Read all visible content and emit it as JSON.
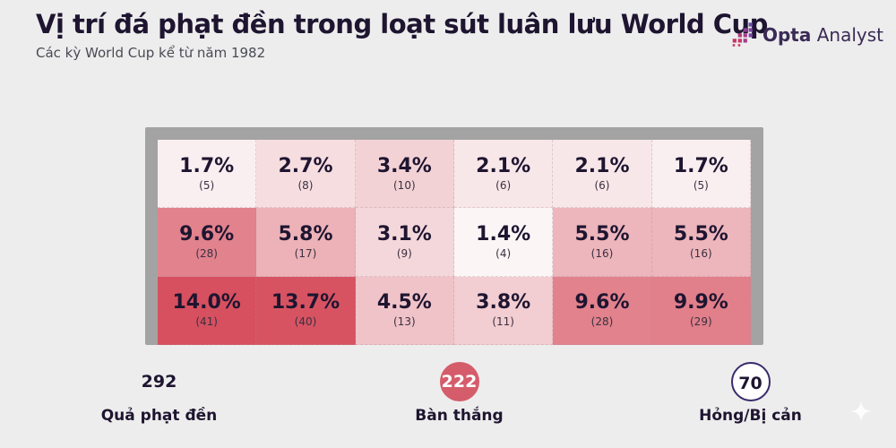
{
  "header": {
    "title": "Vị trí đá phạt đền trong loạt sút luân lưu World Cup",
    "subtitle": "Các kỳ World Cup kể từ năm 1982",
    "logo_brand": "Opta",
    "logo_product": "Analyst"
  },
  "chart_data": {
    "type": "heatmap",
    "rows": 3,
    "columns": 6,
    "cells": [
      [
        {
          "pct": "1.7%",
          "count": "(5)",
          "value": 1.7
        },
        {
          "pct": "2.7%",
          "count": "(8)",
          "value": 2.7
        },
        {
          "pct": "3.4%",
          "count": "(10)",
          "value": 3.4
        },
        {
          "pct": "2.1%",
          "count": "(6)",
          "value": 2.1
        },
        {
          "pct": "2.1%",
          "count": "(6)",
          "value": 2.1
        },
        {
          "pct": "1.7%",
          "count": "(5)",
          "value": 1.7
        }
      ],
      [
        {
          "pct": "9.6%",
          "count": "(28)",
          "value": 9.6
        },
        {
          "pct": "5.8%",
          "count": "(17)",
          "value": 5.8
        },
        {
          "pct": "3.1%",
          "count": "(9)",
          "value": 3.1
        },
        {
          "pct": "1.4%",
          "count": "(4)",
          "value": 1.4
        },
        {
          "pct": "5.5%",
          "count": "(16)",
          "value": 5.5
        },
        {
          "pct": "5.5%",
          "count": "(16)",
          "value": 5.5
        }
      ],
      [
        {
          "pct": "14.0%",
          "count": "(41)",
          "value": 14.0
        },
        {
          "pct": "13.7%",
          "count": "(40)",
          "value": 13.7
        },
        {
          "pct": "4.5%",
          "count": "(13)",
          "value": 4.5
        },
        {
          "pct": "3.8%",
          "count": "(11)",
          "value": 3.8
        },
        {
          "pct": "9.6%",
          "count": "(28)",
          "value": 9.6
        },
        {
          "pct": "9.9%",
          "count": "(29)",
          "value": 9.9
        }
      ]
    ],
    "color_low": "#fbf5f6",
    "color_high": "#d6505f",
    "goal_frame_color": "#a3a3a3"
  },
  "stats": {
    "total": {
      "value": "292",
      "label": "Quả phạt đền"
    },
    "goals": {
      "value": "222",
      "label": "Bàn thắng",
      "color": "#d55c6b"
    },
    "missed": {
      "value": "70",
      "label": "Hỏng/Bị cản",
      "color": "#3a2a6a"
    }
  }
}
